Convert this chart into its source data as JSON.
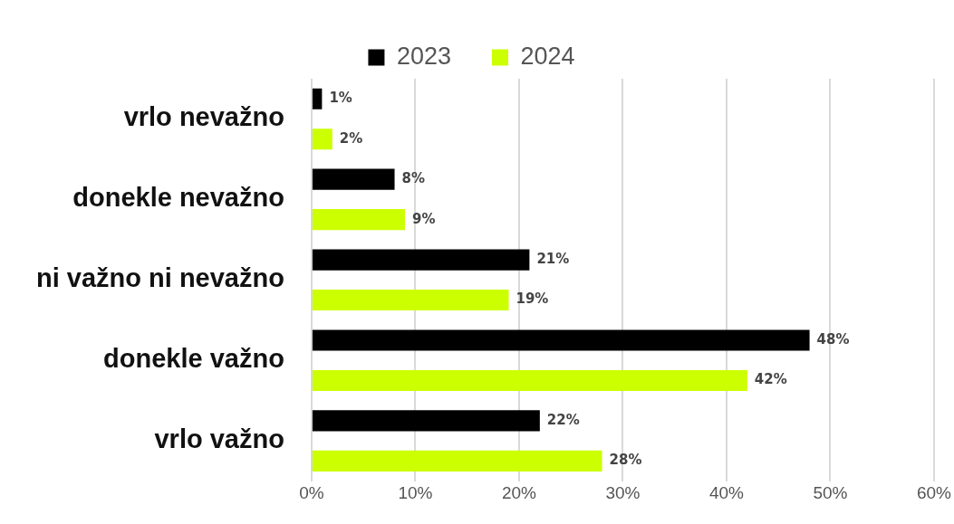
{
  "chart_data": {
    "type": "bar",
    "orientation": "horizontal",
    "categories": [
      "vrlo nevažno",
      "donekle nevažno",
      "ni važno ni nevažno",
      "donekle važno",
      "vrlo važno"
    ],
    "series": [
      {
        "name": "2023",
        "color": "#000000",
        "values": [
          1,
          8,
          21,
          48,
          22
        ],
        "value_labels": [
          "1%",
          "8%",
          "21%",
          "48%",
          "22%"
        ]
      },
      {
        "name": "2024",
        "color": "#ccff00",
        "values": [
          2,
          9,
          19,
          42,
          28
        ],
        "value_labels": [
          "2%",
          "9%",
          "19%",
          "42%",
          "28%"
        ]
      }
    ],
    "xlim": [
      0,
      60
    ],
    "xticks": [
      {
        "value": 0,
        "label": "0%"
      },
      {
        "value": 10,
        "label": "10%"
      },
      {
        "value": 20,
        "label": "20%"
      },
      {
        "value": 30,
        "label": "30%"
      },
      {
        "value": 40,
        "label": "40%"
      },
      {
        "value": 50,
        "label": "50%"
      },
      {
        "value": 60,
        "label": "60%"
      }
    ],
    "grid": "x",
    "legend": "top"
  }
}
